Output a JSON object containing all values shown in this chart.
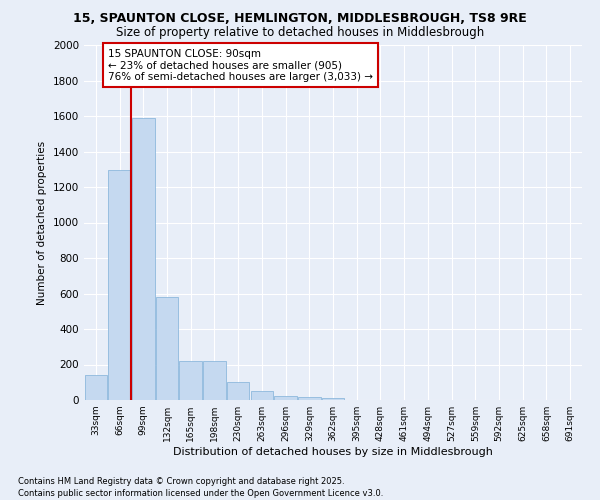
{
  "title_line1": "15, SPAUNTON CLOSE, HEMLINGTON, MIDDLESBROUGH, TS8 9RE",
  "title_line2": "Size of property relative to detached houses in Middlesbrough",
  "xlabel": "Distribution of detached houses by size in Middlesbrough",
  "ylabel": "Number of detached properties",
  "categories": [
    "33sqm",
    "66sqm",
    "99sqm",
    "132sqm",
    "165sqm",
    "198sqm",
    "230sqm",
    "263sqm",
    "296sqm",
    "329sqm",
    "362sqm",
    "395sqm",
    "428sqm",
    "461sqm",
    "494sqm",
    "527sqm",
    "559sqm",
    "592sqm",
    "625sqm",
    "658sqm",
    "691sqm"
  ],
  "values": [
    140,
    1295,
    1590,
    580,
    220,
    220,
    100,
    50,
    25,
    15,
    10,
    0,
    0,
    0,
    0,
    0,
    0,
    0,
    0,
    0,
    0
  ],
  "bar_color": "#c5d9f0",
  "bar_edge_color": "#7fb0d8",
  "vline_color": "#cc0000",
  "annotation_text": "15 SPAUNTON CLOSE: 90sqm\n← 23% of detached houses are smaller (905)\n76% of semi-detached houses are larger (3,033) →",
  "annotation_box_color": "#ffffff",
  "annotation_box_edge_color": "#cc0000",
  "ylim": [
    0,
    2000
  ],
  "yticks": [
    0,
    200,
    400,
    600,
    800,
    1000,
    1200,
    1400,
    1600,
    1800,
    2000
  ],
  "background_color": "#e8eef8",
  "grid_color": "#ffffff",
  "footnote_line1": "Contains HM Land Registry data © Crown copyright and database right 2025.",
  "footnote_line2": "Contains public sector information licensed under the Open Government Licence v3.0."
}
